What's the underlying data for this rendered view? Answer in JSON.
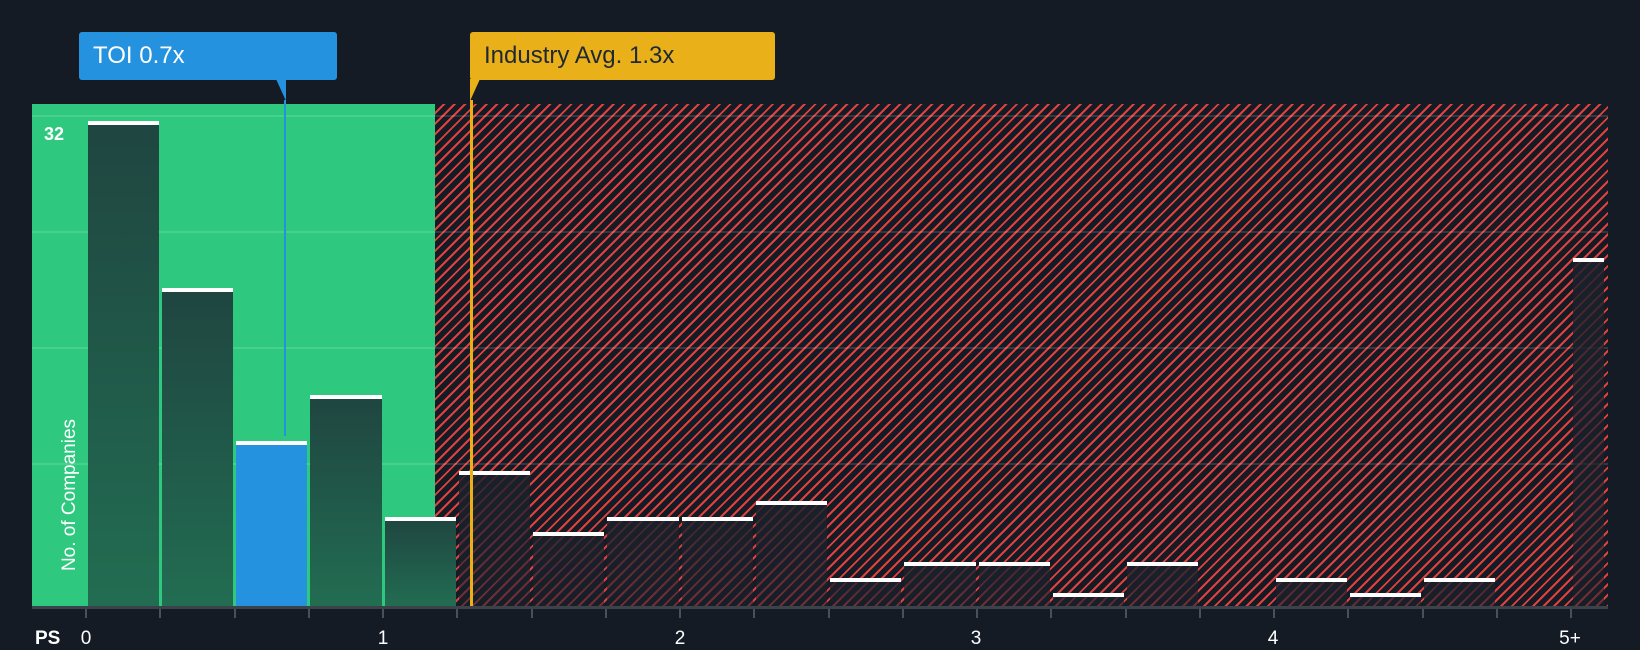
{
  "chart_data": {
    "type": "bar",
    "title": "",
    "xlabel": "PS",
    "ylabel": "No. of Companies",
    "x_tick_labels": [
      "0",
      "1",
      "2",
      "3",
      "4",
      "5+"
    ],
    "y_top_label": "32",
    "ylim": [
      0,
      32
    ],
    "grid": true,
    "bins": [
      {
        "x_start": 0.0,
        "x_end": 0.25,
        "value": 32
      },
      {
        "x_start": 0.25,
        "x_end": 0.5,
        "value": 21
      },
      {
        "x_start": 0.5,
        "x_end": 0.75,
        "value": 11,
        "highlight": true
      },
      {
        "x_start": 0.75,
        "x_end": 1.0,
        "value": 14
      },
      {
        "x_start": 1.0,
        "x_end": 1.25,
        "value": 6
      },
      {
        "x_start": 1.25,
        "x_end": 1.5,
        "value": 9
      },
      {
        "x_start": 1.5,
        "x_end": 1.75,
        "value": 5
      },
      {
        "x_start": 1.75,
        "x_end": 2.0,
        "value": 6
      },
      {
        "x_start": 2.0,
        "x_end": 2.25,
        "value": 6
      },
      {
        "x_start": 2.25,
        "x_end": 2.5,
        "value": 7
      },
      {
        "x_start": 2.5,
        "x_end": 2.75,
        "value": 2
      },
      {
        "x_start": 2.75,
        "x_end": 3.0,
        "value": 3
      },
      {
        "x_start": 3.0,
        "x_end": 3.25,
        "value": 3
      },
      {
        "x_start": 3.25,
        "x_end": 3.5,
        "value": 1
      },
      {
        "x_start": 3.5,
        "x_end": 3.75,
        "value": 3
      },
      {
        "x_start": 3.75,
        "x_end": 4.0,
        "value": 0
      },
      {
        "x_start": 4.0,
        "x_end": 4.25,
        "value": 2
      },
      {
        "x_start": 4.25,
        "x_end": 4.5,
        "value": 1
      },
      {
        "x_start": 4.5,
        "x_end": 4.75,
        "value": 2
      },
      {
        "x_start": 4.75,
        "x_end": 5.0,
        "value": 0
      },
      {
        "x_start": 5.0,
        "x_end": null,
        "value": 23
      }
    ],
    "annotations": [
      {
        "label": "TOI 0.7x",
        "x": 0.7,
        "color": "#2492de"
      },
      {
        "label": "Industry Avg. 1.3x",
        "x": 1.3,
        "color": "#eab01a"
      }
    ],
    "zones": [
      {
        "name": "below-average",
        "x_end": 1.3,
        "color": "#2ec97f"
      },
      {
        "name": "above-average",
        "x_start": 1.3,
        "color": "#e0413f",
        "pattern": "diagonal-hatch"
      }
    ]
  },
  "callouts": {
    "company": "TOI 0.7x",
    "industry": "Industry Avg. 1.3x"
  },
  "axis": {
    "x_title": "PS",
    "y_title": "No. of Companies",
    "y_max_label": "32",
    "ticks": [
      "0",
      "1",
      "2",
      "3",
      "4",
      "5+"
    ]
  },
  "colors": {
    "background": "#151b24",
    "green_zone": "#2ec97f",
    "red_hatch": "#e0413f",
    "company_accent": "#2492de",
    "industry_accent": "#eab01a"
  }
}
